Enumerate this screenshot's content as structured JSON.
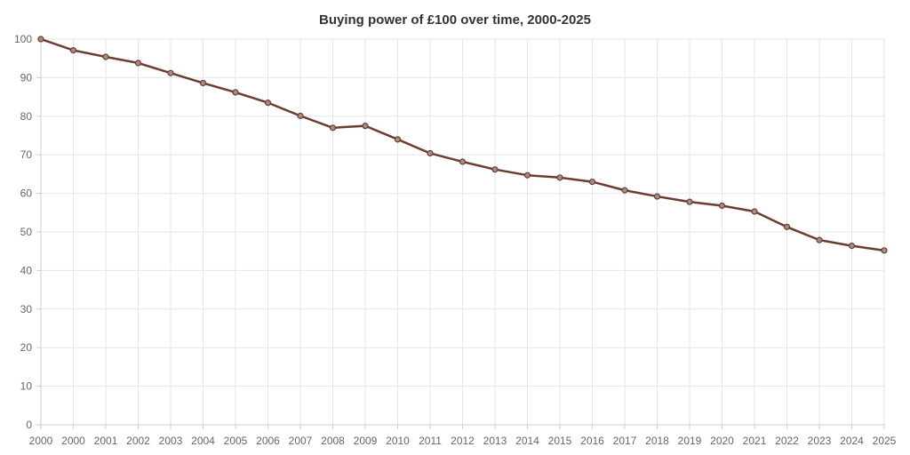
{
  "chart_data": {
    "type": "line",
    "title": "Buying power of £100 over time, 2000-2025",
    "xlabel": "",
    "ylabel": "",
    "categories": [
      "2000",
      "2000",
      "2001",
      "2002",
      "2003",
      "2004",
      "2005",
      "2006",
      "2007",
      "2008",
      "2009",
      "2010",
      "2011",
      "2012",
      "2013",
      "2014",
      "2015",
      "2016",
      "2017",
      "2018",
      "2019",
      "2020",
      "2021",
      "2022",
      "2023",
      "2024",
      "2025"
    ],
    "series": [
      {
        "values": [
          100,
          97.1,
          95.4,
          93.8,
          91.2,
          88.6,
          86.2,
          83.5,
          80.1,
          77.0,
          77.5,
          74.0,
          70.4,
          68.2,
          66.2,
          64.7,
          64.1,
          63.0,
          60.8,
          59.2,
          57.8,
          56.8,
          55.3,
          51.3,
          47.9,
          46.4,
          45.2
        ],
        "color": "#6b3d2e"
      }
    ],
    "ylim": [
      0,
      100
    ],
    "yticks": [
      0,
      10,
      20,
      30,
      40,
      50,
      60,
      70,
      80,
      90,
      100
    ],
    "grid": true,
    "legend": "none"
  }
}
